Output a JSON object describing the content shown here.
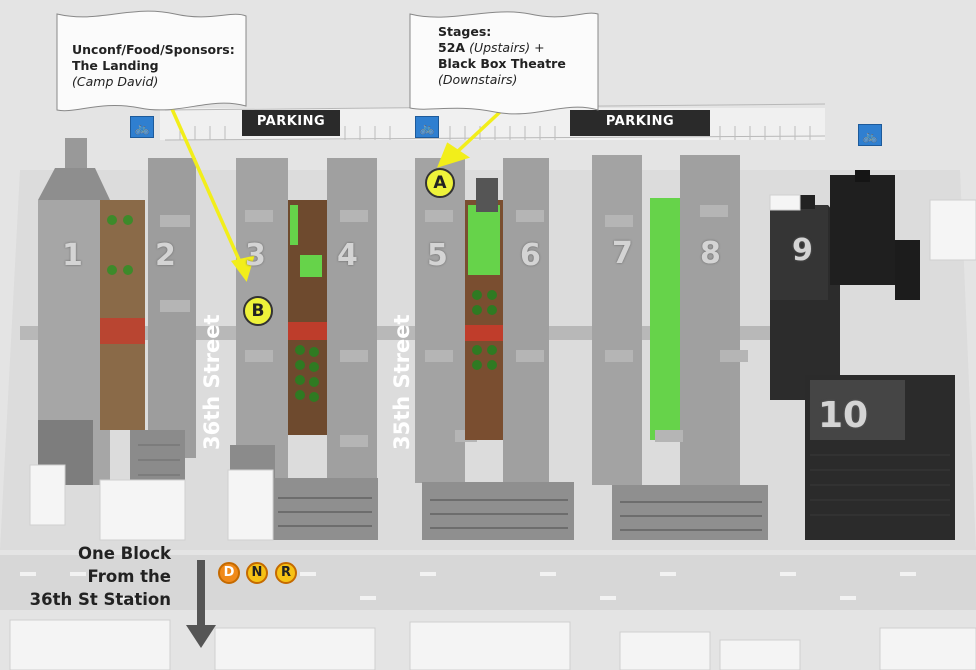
{
  "callouts": {
    "unconf": {
      "line1": "Unconf/Food/Sponsors:",
      "line2": "The Landing",
      "line3": "(Camp David)"
    },
    "stages": {
      "line1": "Stages:",
      "line2a": "52A",
      "line2b": "(Upstairs)",
      "line2c": "+",
      "line3": "Black Box Theatre",
      "line4": "(Downstairs)"
    }
  },
  "parking": [
    "PARKING",
    "PARKING"
  ],
  "markers": {
    "a": "A",
    "b": "B"
  },
  "buildings": [
    "1",
    "2",
    "3",
    "4",
    "5",
    "6",
    "7",
    "8",
    "9",
    "10"
  ],
  "streets": {
    "street36": "36th Street",
    "street35": "35th Street"
  },
  "subway": {
    "lines": [
      "D",
      "N",
      "R"
    ],
    "color": "#f29c1a"
  },
  "station_note": {
    "line1": "One Block",
    "line2": "From the",
    "line3": "36th St Station"
  },
  "colors": {
    "marker": "#eef23a",
    "arrow": "#f2ee1a",
    "courtyard_green": "#66d34a",
    "bike_icon": "#2f7fd0"
  },
  "icons": [
    "bicycle-parking-icon",
    "bicycle-parking-icon",
    "bicycle-parking-icon"
  ]
}
